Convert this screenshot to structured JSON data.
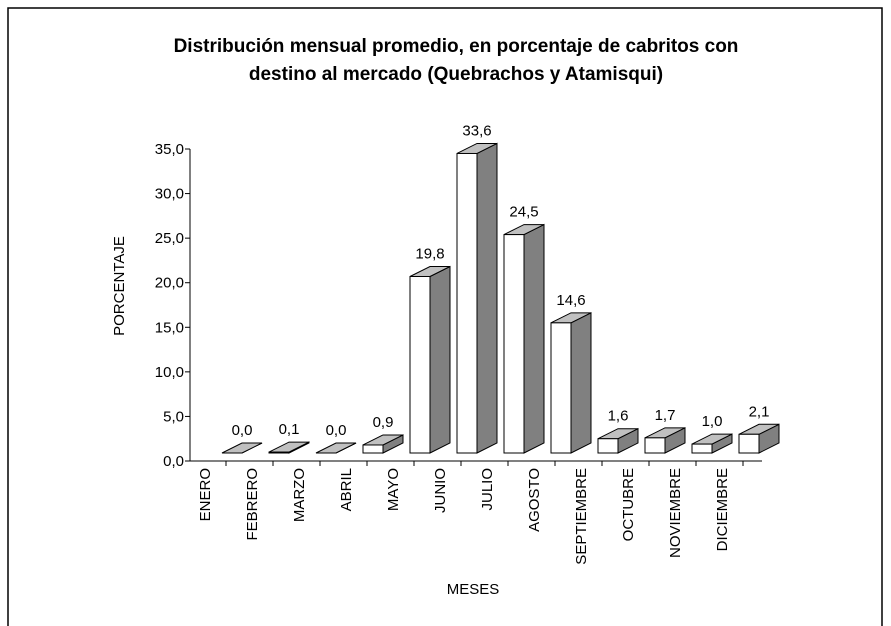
{
  "chart_data": {
    "type": "bar3d",
    "title": [
      "Distribución mensual promedio, en porcentaje de cabritos con",
      "destino al mercado (Quebrachos y Atamisqui)"
    ],
    "xlabel": "MESES",
    "ylabel": "PORCENTAJE",
    "categories": [
      "ENERO",
      "FEBRERO",
      "MARZO",
      "ABRIL",
      "MAYO",
      "JUNIO",
      "JULIO",
      "AGOSTO",
      "SEPTIEMBRE",
      "OCTUBRE",
      "NOVIEMBRE",
      "DICIEMBRE"
    ],
    "values": [
      0.0,
      0.1,
      0.0,
      0.9,
      19.8,
      33.6,
      24.5,
      14.6,
      1.6,
      1.7,
      1.0,
      2.1
    ],
    "value_labels": [
      "0,0",
      "0,1",
      "0,0",
      "0,9",
      "19,8",
      "33,6",
      "24,5",
      "14,6",
      "1,6",
      "1,7",
      "1,0",
      "2,1"
    ],
    "colors": {
      "front": "#ffffff",
      "side": "#808080",
      "top": "#c0c0c0"
    },
    "ylim": [
      0,
      35
    ],
    "yticks": [
      {
        "value": 0,
        "label": "0,0"
      },
      {
        "value": 5,
        "label": "5,0"
      },
      {
        "value": 10,
        "label": "10,0"
      },
      {
        "value": 15,
        "label": "15,0"
      },
      {
        "value": 20,
        "label": "20,0"
      },
      {
        "value": 25,
        "label": "25,0"
      },
      {
        "value": 30,
        "label": "30,0"
      },
      {
        "value": 35,
        "label": "35,0"
      }
    ],
    "grid": false
  }
}
